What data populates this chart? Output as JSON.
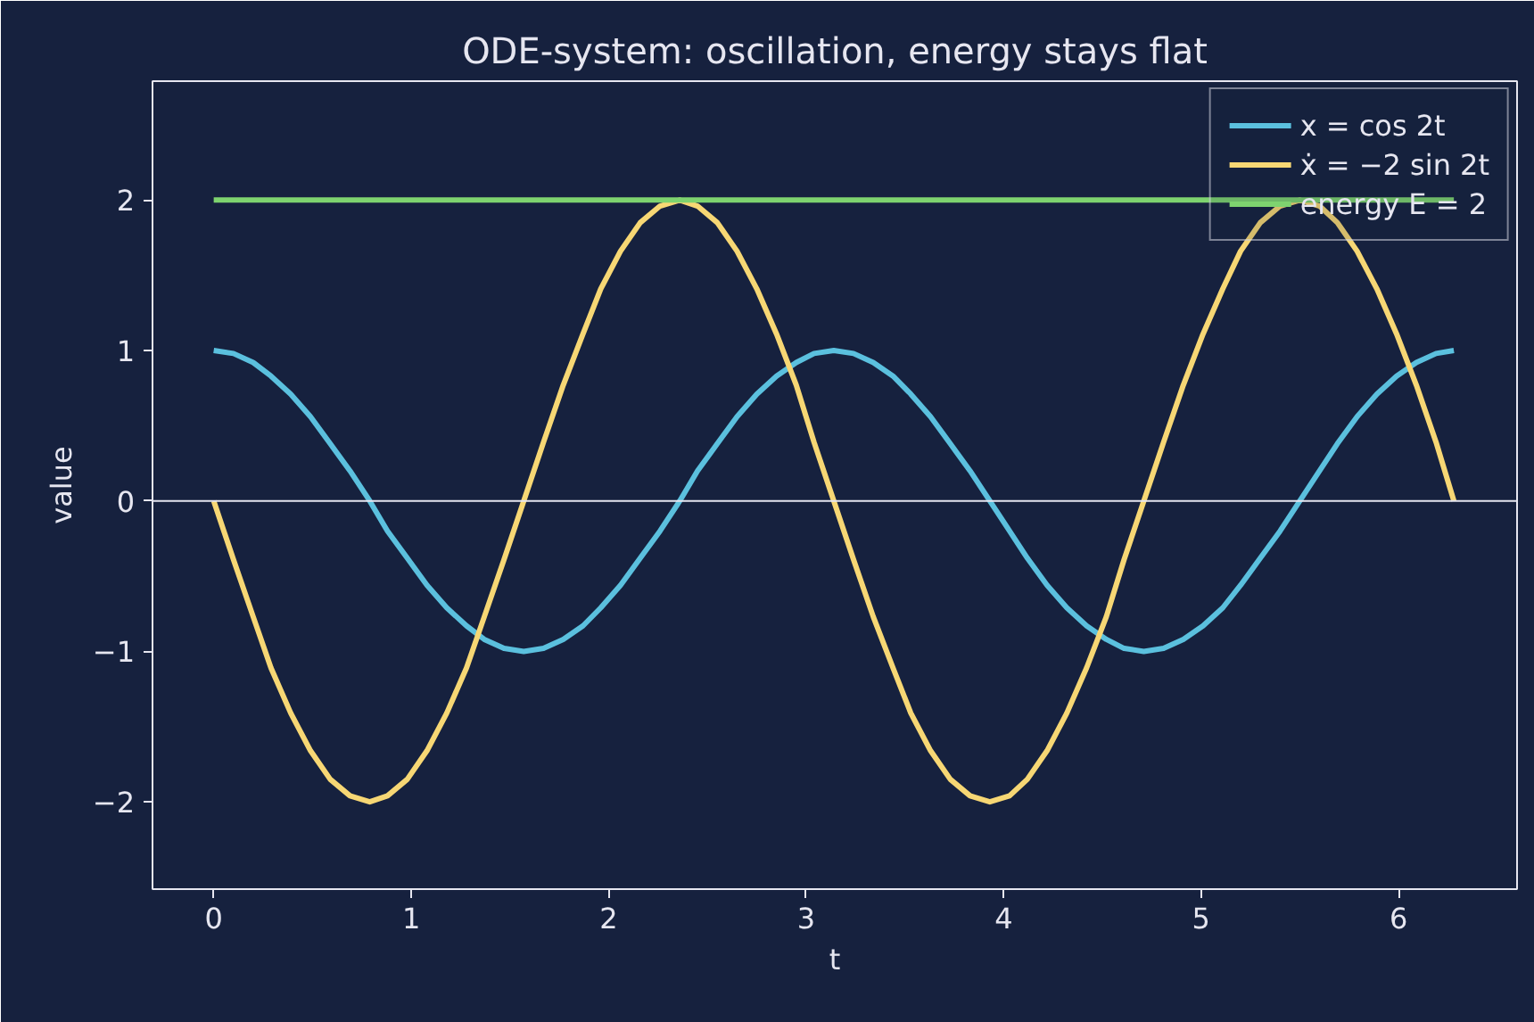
{
  "chart_data": {
    "type": "line",
    "title": "ODE-system: oscillation, energy stays flat",
    "xlabel": "t",
    "ylabel": "value",
    "x": [
      0,
      0.1,
      0.2,
      0.29,
      0.39,
      0.49,
      0.59,
      0.69,
      0.79,
      0.88,
      0.98,
      1.08,
      1.18,
      1.28,
      1.37,
      1.47,
      1.57,
      1.67,
      1.77,
      1.87,
      1.96,
      2.06,
      2.16,
      2.26,
      2.36,
      2.45,
      2.55,
      2.65,
      2.75,
      2.85,
      2.95,
      3.04,
      3.14,
      3.24,
      3.34,
      3.44,
      3.53,
      3.63,
      3.73,
      3.83,
      3.93,
      4.03,
      4.12,
      4.22,
      4.32,
      4.42,
      4.52,
      4.61,
      4.71,
      4.81,
      4.91,
      5.01,
      5.11,
      5.2,
      5.3,
      5.4,
      5.5,
      5.6,
      5.69,
      5.79,
      5.89,
      5.99,
      6.09,
      6.19,
      6.28
    ],
    "series": [
      {
        "name": "x = cos 2t",
        "color": "#5bc0de",
        "values": [
          1,
          0.98,
          0.92,
          0.83,
          0.71,
          0.56,
          0.38,
          0.2,
          0,
          -0.2,
          -0.38,
          -0.56,
          -0.71,
          -0.83,
          -0.92,
          -0.98,
          -1,
          -0.98,
          -0.92,
          -0.83,
          -0.71,
          -0.56,
          -0.38,
          -0.2,
          0,
          0.2,
          0.38,
          0.56,
          0.71,
          0.83,
          0.92,
          0.98,
          1,
          0.98,
          0.92,
          0.83,
          0.71,
          0.56,
          0.38,
          0.2,
          0,
          -0.2,
          -0.38,
          -0.56,
          -0.71,
          -0.83,
          -0.92,
          -0.98,
          -1,
          -0.98,
          -0.92,
          -0.83,
          -0.71,
          -0.56,
          -0.38,
          -0.2,
          0,
          0.2,
          0.38,
          0.56,
          0.71,
          0.83,
          0.92,
          0.98,
          1
        ]
      },
      {
        "name": "ẋ = −2 sin 2t",
        "color": "#f7d774",
        "values": [
          0,
          -0.39,
          -0.77,
          -1.11,
          -1.41,
          -1.66,
          -1.85,
          -1.96,
          -2,
          -1.96,
          -1.85,
          -1.66,
          -1.41,
          -1.11,
          -0.77,
          -0.39,
          0,
          0.39,
          0.77,
          1.11,
          1.41,
          1.66,
          1.85,
          1.96,
          2,
          1.96,
          1.85,
          1.66,
          1.41,
          1.11,
          0.77,
          0.39,
          0,
          -0.39,
          -0.77,
          -1.11,
          -1.41,
          -1.66,
          -1.85,
          -1.96,
          -2,
          -1.96,
          -1.85,
          -1.66,
          -1.41,
          -1.11,
          -0.77,
          -0.39,
          0,
          0.39,
          0.77,
          1.11,
          1.41,
          1.66,
          1.85,
          1.96,
          2,
          1.96,
          1.85,
          1.66,
          1.41,
          1.11,
          0.77,
          0.39,
          0
        ]
      },
      {
        "name": "energy E = 2",
        "color": "#7ed36f",
        "x": [
          0,
          6.28
        ],
        "values": [
          2,
          2
        ]
      }
    ],
    "xlim": [
      -0.31,
      6.6
    ],
    "xticks": [
      0,
      1,
      2,
      3,
      4,
      5,
      6
    ],
    "ylim": [
      -2.58,
      2.79
    ],
    "yticks": [
      {
        "value": -2,
        "label": "−2"
      },
      {
        "value": -1,
        "label": "−1"
      },
      0,
      1,
      2
    ],
    "ref_lines": [
      {
        "axis": "y",
        "value": 0,
        "color": "#e6e6f0"
      }
    ],
    "grid": false,
    "legend": "top right",
    "marker": "none",
    "line_style": "solid"
  }
}
